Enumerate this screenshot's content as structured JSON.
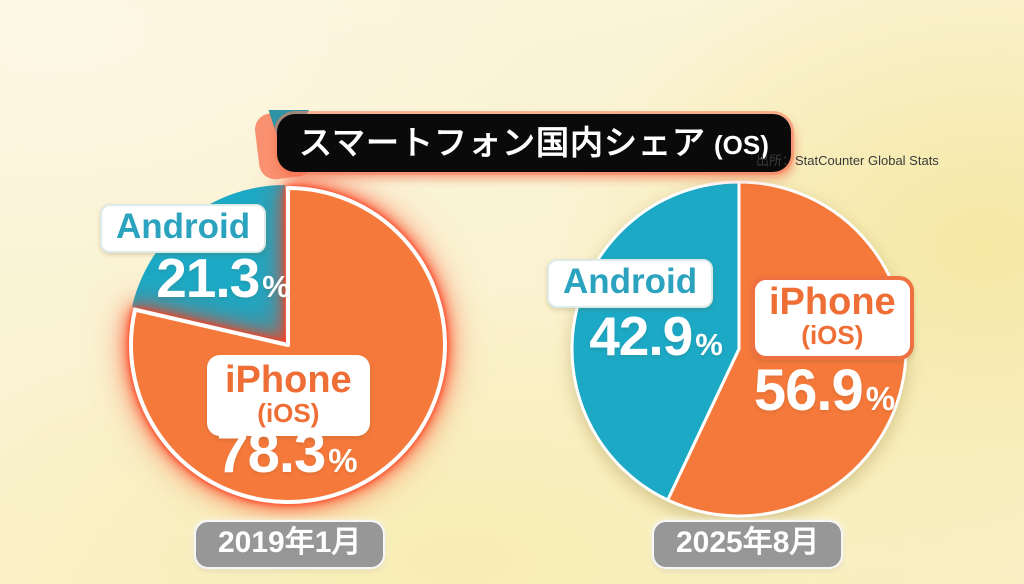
{
  "title": {
    "main": "スマートフォン国内シェア",
    "suffix": "(OS)"
  },
  "source": "出所：StatCounter Global Stats",
  "units": {
    "percent": "%"
  },
  "pies": [
    {
      "android_label": "Android",
      "android_value": "21.3",
      "iphone_label": "iPhone",
      "iphone_sub": "(iOS)",
      "iphone_value": "78.3",
      "date": "2019年1月"
    },
    {
      "android_label": "Android",
      "android_value": "42.9",
      "iphone_label": "iPhone",
      "iphone_sub": "(iOS)",
      "iphone_value": "56.9",
      "date": "2025年8月"
    }
  ],
  "chart_data": [
    {
      "type": "pie",
      "title": "2019年1月",
      "labels": [
        "Android",
        "iPhone (iOS)"
      ],
      "values": [
        21.3,
        78.3
      ],
      "unit": "%",
      "colors": [
        "#1CA9C5",
        "#F5793B"
      ],
      "start_angle": "12-oclock",
      "clockwise_order": [
        1,
        0
      ],
      "emphasized_slice": 1,
      "emphasis_style": "white outline with red glow, slightly exploded"
    },
    {
      "type": "pie",
      "title": "2025年8月",
      "labels": [
        "Android",
        "iPhone (iOS)"
      ],
      "values": [
        42.9,
        56.9
      ],
      "unit": "%",
      "colors": [
        "#1CA9C5",
        "#F5793B"
      ],
      "start_angle": "12-oclock",
      "clockwise_order": [
        1,
        0
      ],
      "emphasized_slice": -1,
      "emphasis_style": "none; soft drop shadow under whole pie"
    }
  ],
  "colors": {
    "android_teal": "#1CA9C5",
    "iphone_orange": "#F5793B",
    "android_text_teal": "#2BA3BF",
    "iphone_text_orange": "#EE6E35",
    "emphasis_glow_red": "#FB3D1C",
    "title_bg_black": "#0A0A0A",
    "ribbon_coral": "#F9906F",
    "ribbon_teal": "#2F93A6",
    "date_pill_gray": "#979797",
    "background_cream": "#FBF5DC"
  }
}
